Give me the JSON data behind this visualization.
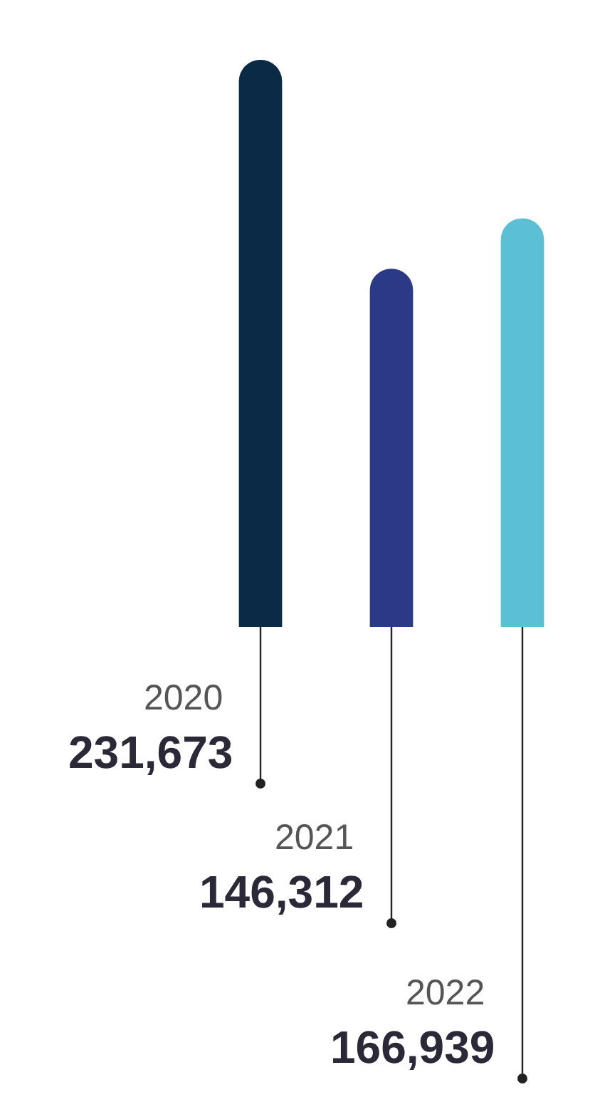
{
  "chart_data": {
    "type": "bar",
    "categories": [
      null,
      null,
      null
    ],
    "values": [
      231673,
      146312,
      166939
    ],
    "colors": [
      "#0a2a45",
      "#2b3a87",
      "#5bbfd6"
    ],
    "value_labels": [
      "231,673",
      "146,312",
      "166,939"
    ],
    "annotations": [
      "2020",
      "2021",
      "2022"
    ]
  }
}
